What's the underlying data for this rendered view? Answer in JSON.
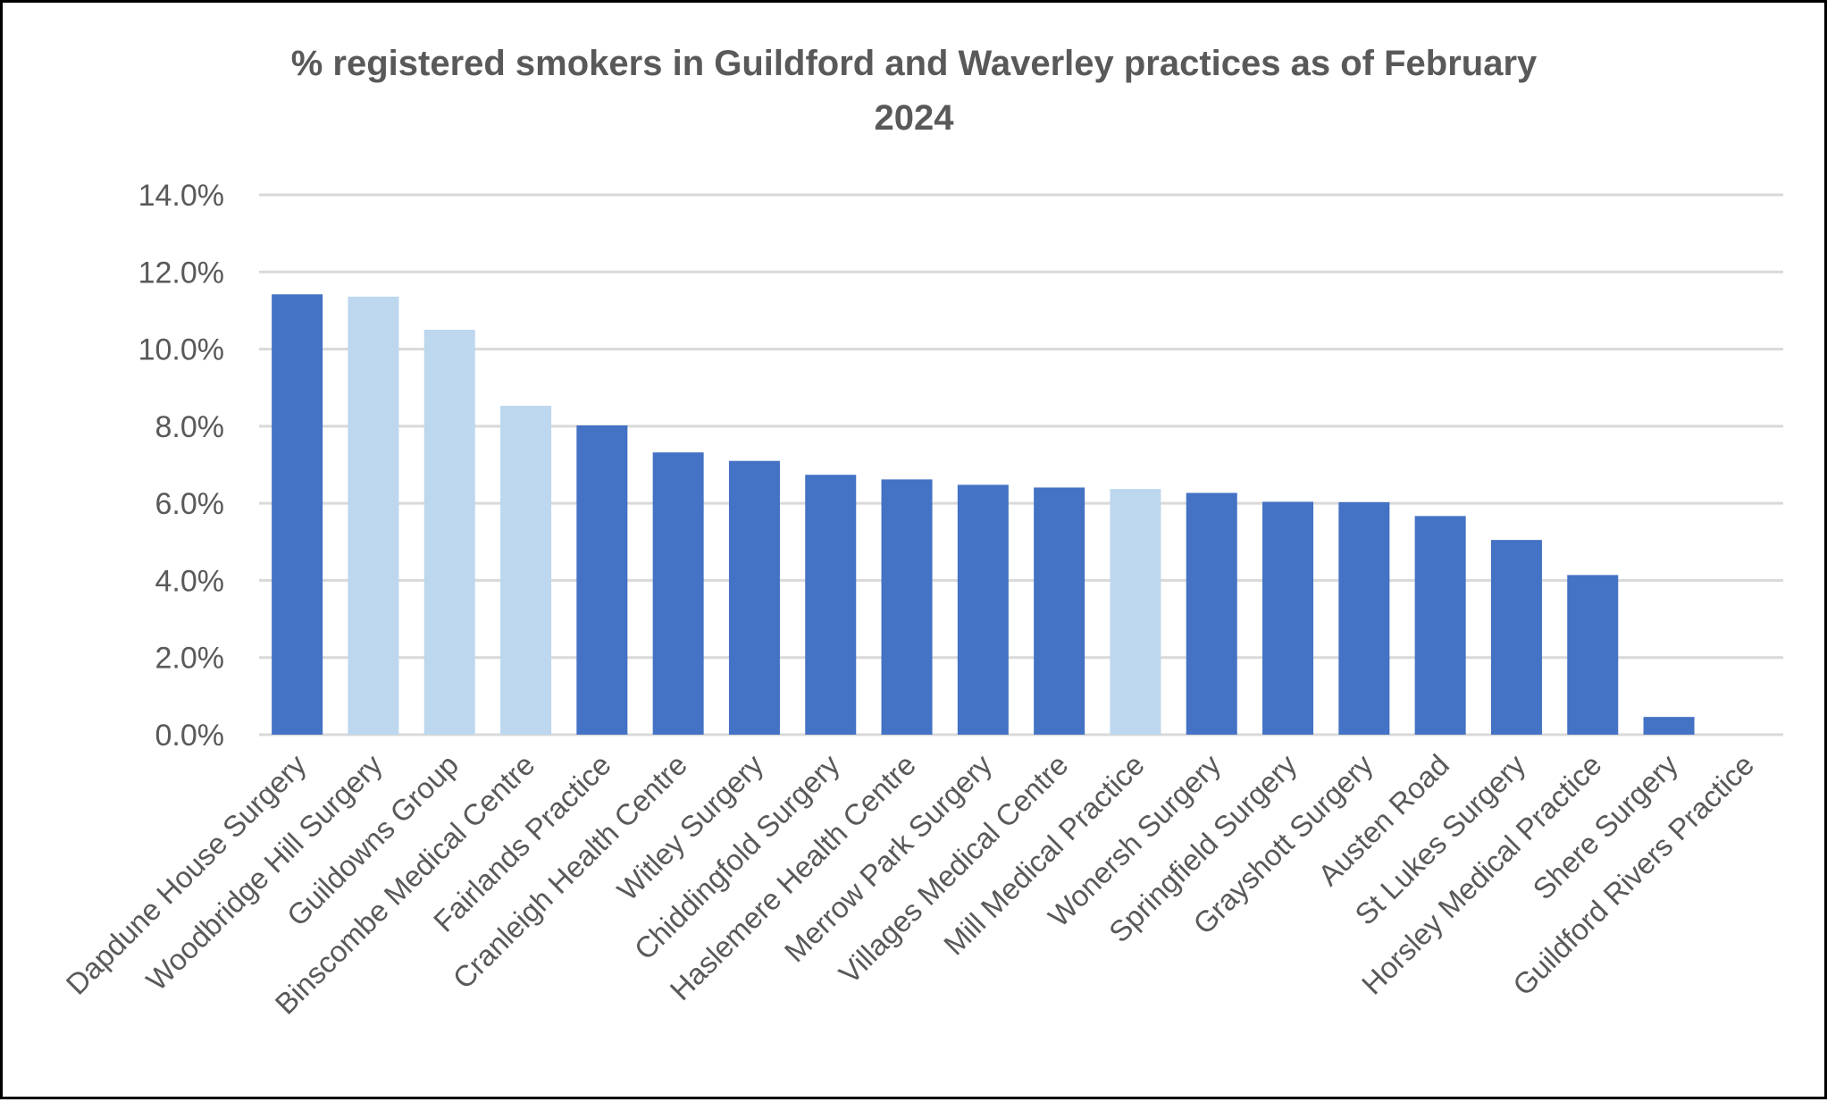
{
  "chart_data": {
    "type": "bar",
    "title": "% registered smokers in Guildford and Waverley practices as of February 2024",
    "title_lines": [
      "% registered smokers in Guildford and Waverley practices as of February",
      "2024"
    ],
    "xlabel": "",
    "ylabel": "",
    "ylim": [
      0,
      0.14
    ],
    "yticks": [
      "0.0%",
      "2.0%",
      "4.0%",
      "6.0%",
      "8.0%",
      "10.0%",
      "12.0%",
      "14.0%"
    ],
    "grid": true,
    "legend": null,
    "categories": [
      "Dapdune House Surgery",
      "Woodbridge Hill Surgery",
      "Guildowns Group",
      "Binscombe Medical Centre",
      "Fairlands Practice",
      "Cranleigh Health Centre",
      "Witley Surgery",
      "Chiddingfold Surgery",
      "Haslemere Health Centre",
      "Merrow Park Surgery",
      "Villages Medical Centre",
      "Mill Medical Practice",
      "Wonersh Surgery",
      "Springfield Surgery",
      "Grayshott Surgery",
      "Austen Road",
      "St Lukes Surgery",
      "Horsley Medical Practice",
      "Shere Surgery",
      "Guildford Rivers Practice"
    ],
    "values": [
      0.1142,
      0.1136,
      0.105,
      0.0853,
      0.0802,
      0.0732,
      0.071,
      0.0674,
      0.0662,
      0.0648,
      0.0641,
      0.0637,
      0.0627,
      0.0604,
      0.0603,
      0.0567,
      0.0505,
      0.0414,
      0.0046,
      0.0
    ],
    "bar_colors": [
      "#4472C4",
      "#BDD7EE",
      "#BDD7EE",
      "#BDD7EE",
      "#4472C4",
      "#4472C4",
      "#4472C4",
      "#4472C4",
      "#4472C4",
      "#4472C4",
      "#4472C4",
      "#BDD7EE",
      "#4472C4",
      "#4472C4",
      "#4472C4",
      "#4472C4",
      "#4472C4",
      "#4472C4",
      "#4472C4",
      "#4472C4"
    ],
    "colors": {
      "primary": "#4472C4",
      "highlight": "#BDD7EE",
      "grid": "#D9D9D9",
      "text": "#595959"
    }
  }
}
